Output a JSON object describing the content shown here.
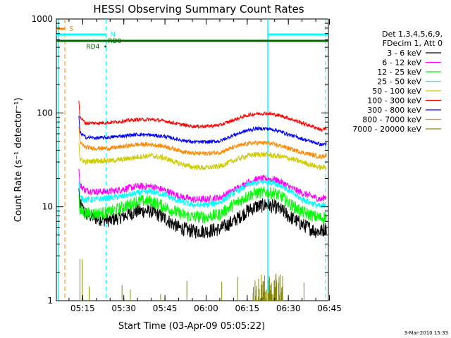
{
  "chart_data": {
    "type": "line",
    "title": "HESSI Observing Summary Count Rates",
    "xlabel": "Start Time (03-Apr-09 05:05:22)",
    "ylabel": "Count Rate (s⁻¹ detector⁻¹)",
    "x_range": [
      "05:05",
      "06:45"
    ],
    "ylim": [
      1,
      1000
    ],
    "y_scale": "log",
    "x_tick_labels": [
      "05:15",
      "05:30",
      "05:45",
      "06:00",
      "06:15",
      "06:30",
      "06:45"
    ],
    "x_tick_minutes": [
      15,
      30,
      45,
      60,
      75,
      90,
      105
    ],
    "y_tick_labels": [
      "1",
      "10",
      "100",
      "1000"
    ],
    "y_tick_values": [
      1,
      10,
      100,
      1000
    ],
    "legend_position": "right",
    "legend_header": [
      "Det 1,3,4,5,6,9,",
      "FDecim 1, Att 0"
    ],
    "x_minutes": [
      14,
      16,
      20,
      25,
      30,
      35,
      40,
      45,
      50,
      55,
      60,
      65,
      70,
      75,
      78,
      82,
      85,
      88,
      90,
      95,
      100,
      102,
      104
    ],
    "series": [
      {
        "name": "3 - 6 keV",
        "color": "#000000",
        "values": [
          10.5,
          8.5,
          7.5,
          7.2,
          8.0,
          9.0,
          9.0,
          7.5,
          6.0,
          5.5,
          5.5,
          5.8,
          7.0,
          9.0,
          10.0,
          10.5,
          10.0,
          9.0,
          8.0,
          6.5,
          5.5,
          5.5,
          6.0
        ],
        "noise": 0.08
      },
      {
        "name": "6 - 12 keV",
        "color": "#ff00ff",
        "values": [
          17,
          15,
          14.5,
          14.5,
          15.5,
          16.5,
          16.5,
          15.0,
          13.0,
          12.0,
          12.0,
          12.5,
          15.0,
          18.0,
          19.5,
          20.0,
          19.5,
          18.0,
          16.5,
          14.0,
          12.5,
          12.0,
          13.0
        ],
        "noise": 0.04
      },
      {
        "name": "12 - 25 keV",
        "color": "#00ff00",
        "values": [
          9.0,
          8.5,
          8.5,
          8.8,
          10.0,
          11.5,
          11.5,
          10.0,
          8.5,
          7.8,
          7.8,
          8.3,
          10.5,
          13.0,
          14.0,
          14.2,
          14.0,
          12.5,
          11.0,
          8.8,
          7.8,
          7.6,
          8.0
        ],
        "noise": 0.07
      },
      {
        "name": "25 - 50 keV",
        "color": "#00ffff",
        "values": [
          12.5,
          12.0,
          12.0,
          12.5,
          13.0,
          14.0,
          14.5,
          13.5,
          11.5,
          10.5,
          10.5,
          11.2,
          14.0,
          17.0,
          18.0,
          18.5,
          18.0,
          16.5,
          15.0,
          12.0,
          10.5,
          10.0,
          11.0
        ],
        "noise": 0.035
      },
      {
        "name": "50 - 100 keV",
        "color": "#cccc00",
        "values": [
          32,
          30,
          31,
          31,
          32,
          34,
          35,
          33,
          29,
          26.5,
          26,
          27,
          31,
          35,
          36,
          36,
          35,
          34,
          33,
          30,
          27,
          26,
          27
        ],
        "noise": 0.03
      },
      {
        "name": "100 - 300 keV",
        "color": "#ff0000",
        "values": [
          90,
          78,
          78,
          79,
          82,
          85,
          85,
          82,
          76,
          72,
          72,
          74,
          84,
          94,
          98,
          99,
          96,
          92,
          88,
          78,
          70,
          66,
          68
        ],
        "noise": 0.02
      },
      {
        "name": "300 - 800 keV",
        "color": "#0000ff",
        "values": [
          62,
          55,
          54,
          55,
          57,
          59,
          58,
          56,
          52,
          49,
          49,
          50,
          58,
          65,
          68,
          68,
          66,
          62,
          59,
          53,
          48,
          46,
          47
        ],
        "noise": 0.02
      },
      {
        "name": "800 - 7000 keV",
        "color": "#ff8800",
        "values": [
          48,
          43,
          42,
          42,
          44,
          46,
          46,
          44,
          40,
          37,
          37,
          38,
          43,
          47,
          48,
          48,
          46,
          44,
          42,
          38,
          35,
          34,
          36
        ],
        "noise": 0.025
      },
      {
        "name": "7000 - 20000 keV",
        "color": "#888800",
        "values": [
          1,
          1,
          1,
          1,
          1,
          1,
          1,
          1,
          1,
          1,
          1,
          1,
          1,
          1,
          2,
          2,
          2,
          2,
          1,
          1,
          1,
          1,
          1
        ],
        "noise": 0
      }
    ],
    "annotations": [
      {
        "label": "S",
        "color": "#ff8800"
      },
      {
        "label": "N",
        "color": "#00ffff"
      },
      {
        "label": "RD0",
        "color": "#006600"
      },
      {
        "label": "RD4",
        "color": "#006600"
      }
    ],
    "footer_text": "3-Mar-2010 15:33"
  }
}
